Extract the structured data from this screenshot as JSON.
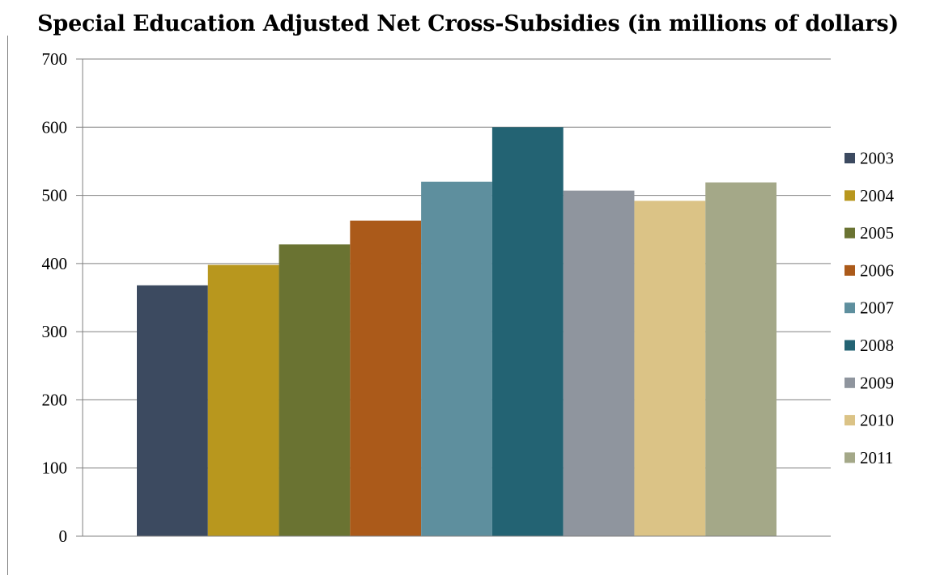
{
  "chart_data": {
    "type": "bar",
    "title": "Special Education Adjusted Net Cross-Subsidies (in millions of dollars)",
    "xlabel": "",
    "ylabel": "",
    "ylim": [
      0,
      700
    ],
    "yticks": [
      0,
      100,
      200,
      300,
      400,
      500,
      600,
      700
    ],
    "grid": true,
    "legend_position": "right",
    "series": [
      {
        "name": "2003",
        "value": 368,
        "color": "#3C4A60"
      },
      {
        "name": "2004",
        "value": 398,
        "color": "#B8971E"
      },
      {
        "name": "2005",
        "value": 428,
        "color": "#6A7332"
      },
      {
        "name": "2006",
        "value": 463,
        "color": "#AB5A1A"
      },
      {
        "name": "2007",
        "value": 520,
        "color": "#5E8F9E"
      },
      {
        "name": "2008",
        "value": 600,
        "color": "#236373"
      },
      {
        "name": "2009",
        "value": 507,
        "color": "#8F959E"
      },
      {
        "name": "2010",
        "value": 492,
        "color": "#DBC386"
      },
      {
        "name": "2011",
        "value": 519,
        "color": "#A4A888"
      }
    ]
  }
}
